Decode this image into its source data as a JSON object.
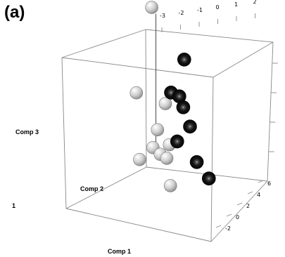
{
  "panel_label": "(a)",
  "chart_data": {
    "type": "scatter",
    "projection": "3d",
    "xlabel": "Comp 1",
    "ylabel": "Comp 2",
    "zlabel": "Comp 3",
    "stray_label": "1",
    "top_ticks": [
      "-3",
      "-2",
      "-1",
      "0",
      "1",
      "2"
    ],
    "right_ticks": [
      "6",
      "4",
      "2",
      "0",
      "-2"
    ],
    "box_color": "#888888",
    "series": [
      {
        "color": "#c0c0c0",
        "points": [
          {
            "x": 0.1,
            "y": 6.6,
            "z": 2.8
          },
          {
            "x": -1.6,
            "y": 4.0,
            "z": 1.6
          },
          {
            "x": 0.3,
            "y": 4.1,
            "z": 1.3
          },
          {
            "x": -0.4,
            "y": 3.4,
            "z": 0.9
          },
          {
            "x": -0.8,
            "y": 3.0,
            "z": 0.6
          },
          {
            "x": 0.4,
            "y": 3.5,
            "z": 0.5
          },
          {
            "x": -0.3,
            "y": 3.1,
            "z": 0.4
          },
          {
            "x": 0.2,
            "y": 3.4,
            "z": 0.2
          },
          {
            "x": -1.5,
            "y": 3.6,
            "z": 0.1
          },
          {
            "x": 0.3,
            "y": 2.9,
            "z": -0.3
          }
        ]
      },
      {
        "color": "#111111",
        "points": [
          {
            "x": 1.9,
            "y": 5.5,
            "z": 1.9
          },
          {
            "x": 0.8,
            "y": 4.6,
            "z": 1.4
          },
          {
            "x": 1.5,
            "y": 5.2,
            "z": 1.1
          },
          {
            "x": 1.7,
            "y": 5.0,
            "z": 0.9
          },
          {
            "x": 2.0,
            "y": 4.5,
            "z": 0.6
          },
          {
            "x": 1.2,
            "y": 4.6,
            "z": 0.2
          },
          {
            "x": 2.3,
            "y": 4.0,
            "z": -0.1
          },
          {
            "x": 3.0,
            "y": 3.7,
            "z": -0.4
          }
        ]
      }
    ]
  }
}
